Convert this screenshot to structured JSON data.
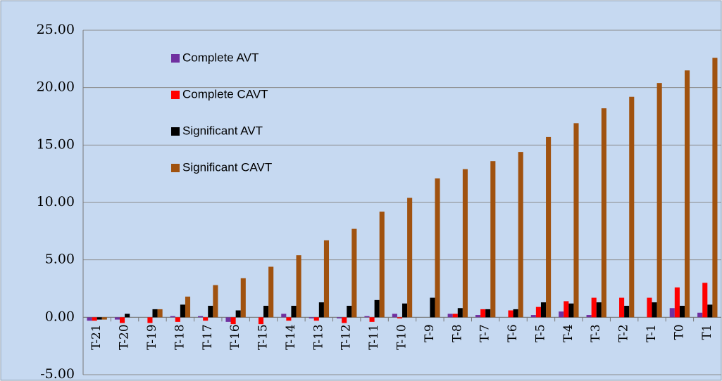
{
  "chart_data": {
    "type": "bar",
    "categories": [
      "T-21",
      "T-20",
      "T-19",
      "T-18",
      "T-17",
      "T-16",
      "T-15",
      "T-14",
      "T-13",
      "T-12",
      "T-11",
      "T-10",
      "T-9",
      "T-8",
      "T-7",
      "T-6",
      "T-5",
      "T-4",
      "T-3",
      "T-2",
      "T-1",
      "T0",
      "T1"
    ],
    "series": [
      {
        "name": "Complete AVT",
        "color": "#7030a0",
        "values": [
          -0.3,
          -0.2,
          0,
          0.1,
          0.1,
          -0.4,
          0,
          0.3,
          -0.1,
          -0.1,
          0.1,
          0.3,
          0,
          0.3,
          0.2,
          0,
          0.2,
          0.5,
          0.2,
          0,
          0,
          0.8,
          0.4
        ]
      },
      {
        "name": "Complete CAVT",
        "color": "#ff0000",
        "values": [
          -0.3,
          -0.5,
          -0.5,
          -0.4,
          -0.3,
          -0.6,
          -0.6,
          -0.3,
          -0.3,
          -0.5,
          -0.4,
          -0.1,
          0,
          0.3,
          0.7,
          0.6,
          0.9,
          1.4,
          1.7,
          1.7,
          1.7,
          2.6,
          3.0
        ]
      },
      {
        "name": "Significant AVT",
        "color": "#000000",
        "values": [
          -0.2,
          0.3,
          0.7,
          1.1,
          1.0,
          0.6,
          1.0,
          1.0,
          1.3,
          1.0,
          1.5,
          1.2,
          1.7,
          0.8,
          0.7,
          0.7,
          1.3,
          1.2,
          1.3,
          1.0,
          1.3,
          1.0,
          1.1
        ]
      },
      {
        "name": "Significant CAVT",
        "color": "#a0520f",
        "values": [
          -0.2,
          0,
          0.7,
          1.8,
          2.8,
          3.4,
          4.4,
          5.4,
          6.7,
          7.7,
          9.2,
          10.4,
          12.1,
          12.9,
          13.6,
          14.4,
          15.7,
          16.9,
          18.2,
          19.2,
          20.4,
          21.5,
          22.6
        ]
      }
    ],
    "ylim": [
      -5,
      25
    ],
    "yticks": [
      {
        "value": -5,
        "label": "-5.00"
      },
      {
        "value": 0,
        "label": "0.00"
      },
      {
        "value": 5,
        "label": "5.00"
      },
      {
        "value": 10,
        "label": "10.00"
      },
      {
        "value": 15,
        "label": "15.00"
      },
      {
        "value": 20,
        "label": "20.00"
      },
      {
        "value": 25,
        "label": "25.00"
      }
    ],
    "grid": true,
    "legend": "upper-left"
  }
}
